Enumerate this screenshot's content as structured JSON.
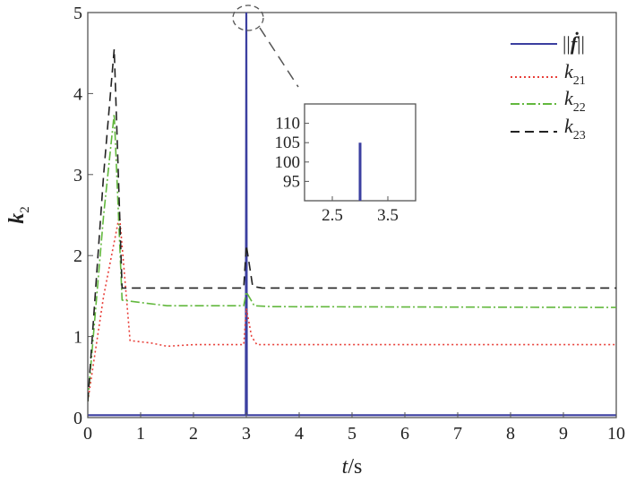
{
  "chart_data": [
    {
      "type": "line",
      "xlabel_var": "t",
      "xlabel_unit": "/s",
      "ylabel_var": "k",
      "ylabel_sub": "2",
      "xlim": [
        0,
        10
      ],
      "ylim": [
        0,
        5
      ],
      "x_ticks": [
        "0",
        "1",
        "2",
        "3",
        "4",
        "5",
        "6",
        "7",
        "8",
        "9",
        "10"
      ],
      "y_ticks": [
        "0",
        "1",
        "2",
        "3",
        "4",
        "5"
      ],
      "grid": false,
      "legend_position": "top-right",
      "series": [
        {
          "key": "fdot",
          "legend_prefix": "||",
          "legend_var": "ḟ",
          "legend_suffix": "||",
          "color": "#3b3fa0",
          "style": "solid",
          "points": [
            [
              0,
              0.03
            ],
            [
              2.99,
              0.03
            ],
            [
              3.0,
              5.0
            ],
            [
              3.01,
              0.03
            ],
            [
              10,
              0.03
            ]
          ]
        },
        {
          "key": "k21",
          "legend_var": "k",
          "legend_sub": "21",
          "color": "#e8403a",
          "style": "dotted",
          "points": [
            [
              0,
              0.2
            ],
            [
              0.3,
              1.5
            ],
            [
              0.6,
              2.5
            ],
            [
              0.8,
              0.95
            ],
            [
              1.2,
              0.92
            ],
            [
              1.5,
              0.88
            ],
            [
              2.0,
              0.9
            ],
            [
              2.95,
              0.9
            ],
            [
              3.0,
              1.35
            ],
            [
              3.1,
              1.0
            ],
            [
              3.2,
              0.9
            ],
            [
              10,
              0.9
            ]
          ]
        },
        {
          "key": "k22",
          "legend_var": "k",
          "legend_sub": "22",
          "color": "#62b83d",
          "style": "dashdot",
          "points": [
            [
              0,
              0.2
            ],
            [
              0.3,
              2.5
            ],
            [
              0.5,
              3.75
            ],
            [
              0.65,
              1.45
            ],
            [
              1.0,
              1.42
            ],
            [
              1.5,
              1.38
            ],
            [
              2.0,
              1.38
            ],
            [
              2.95,
              1.38
            ],
            [
              3.0,
              1.55
            ],
            [
              3.15,
              1.38
            ],
            [
              3.5,
              1.37
            ],
            [
              10,
              1.36
            ]
          ]
        },
        {
          "key": "k23",
          "legend_var": "k",
          "legend_sub": "23",
          "color": "#222222",
          "style": "dashed",
          "points": [
            [
              0,
              0.2
            ],
            [
              0.3,
              3.0
            ],
            [
              0.5,
              4.55
            ],
            [
              0.65,
              1.6
            ],
            [
              1.0,
              1.6
            ],
            [
              2.95,
              1.6
            ],
            [
              3.0,
              2.13
            ],
            [
              3.12,
              1.62
            ],
            [
              3.3,
              1.6
            ],
            [
              10,
              1.6
            ]
          ]
        }
      ]
    },
    {
      "type": "line",
      "role": "inset",
      "xlim": [
        2.0,
        4.0
      ],
      "ylim": [
        90,
        115
      ],
      "x_ticks": [
        "2.5",
        "3.5"
      ],
      "y_ticks": [
        "95",
        "100",
        "105",
        "110"
      ],
      "series": [
        {
          "key": "fdot_zoom",
          "color": "#3b3fa0",
          "style": "solid",
          "points": [
            [
              3.0,
              90
            ],
            [
              3.0,
              105
            ]
          ]
        }
      ]
    }
  ]
}
